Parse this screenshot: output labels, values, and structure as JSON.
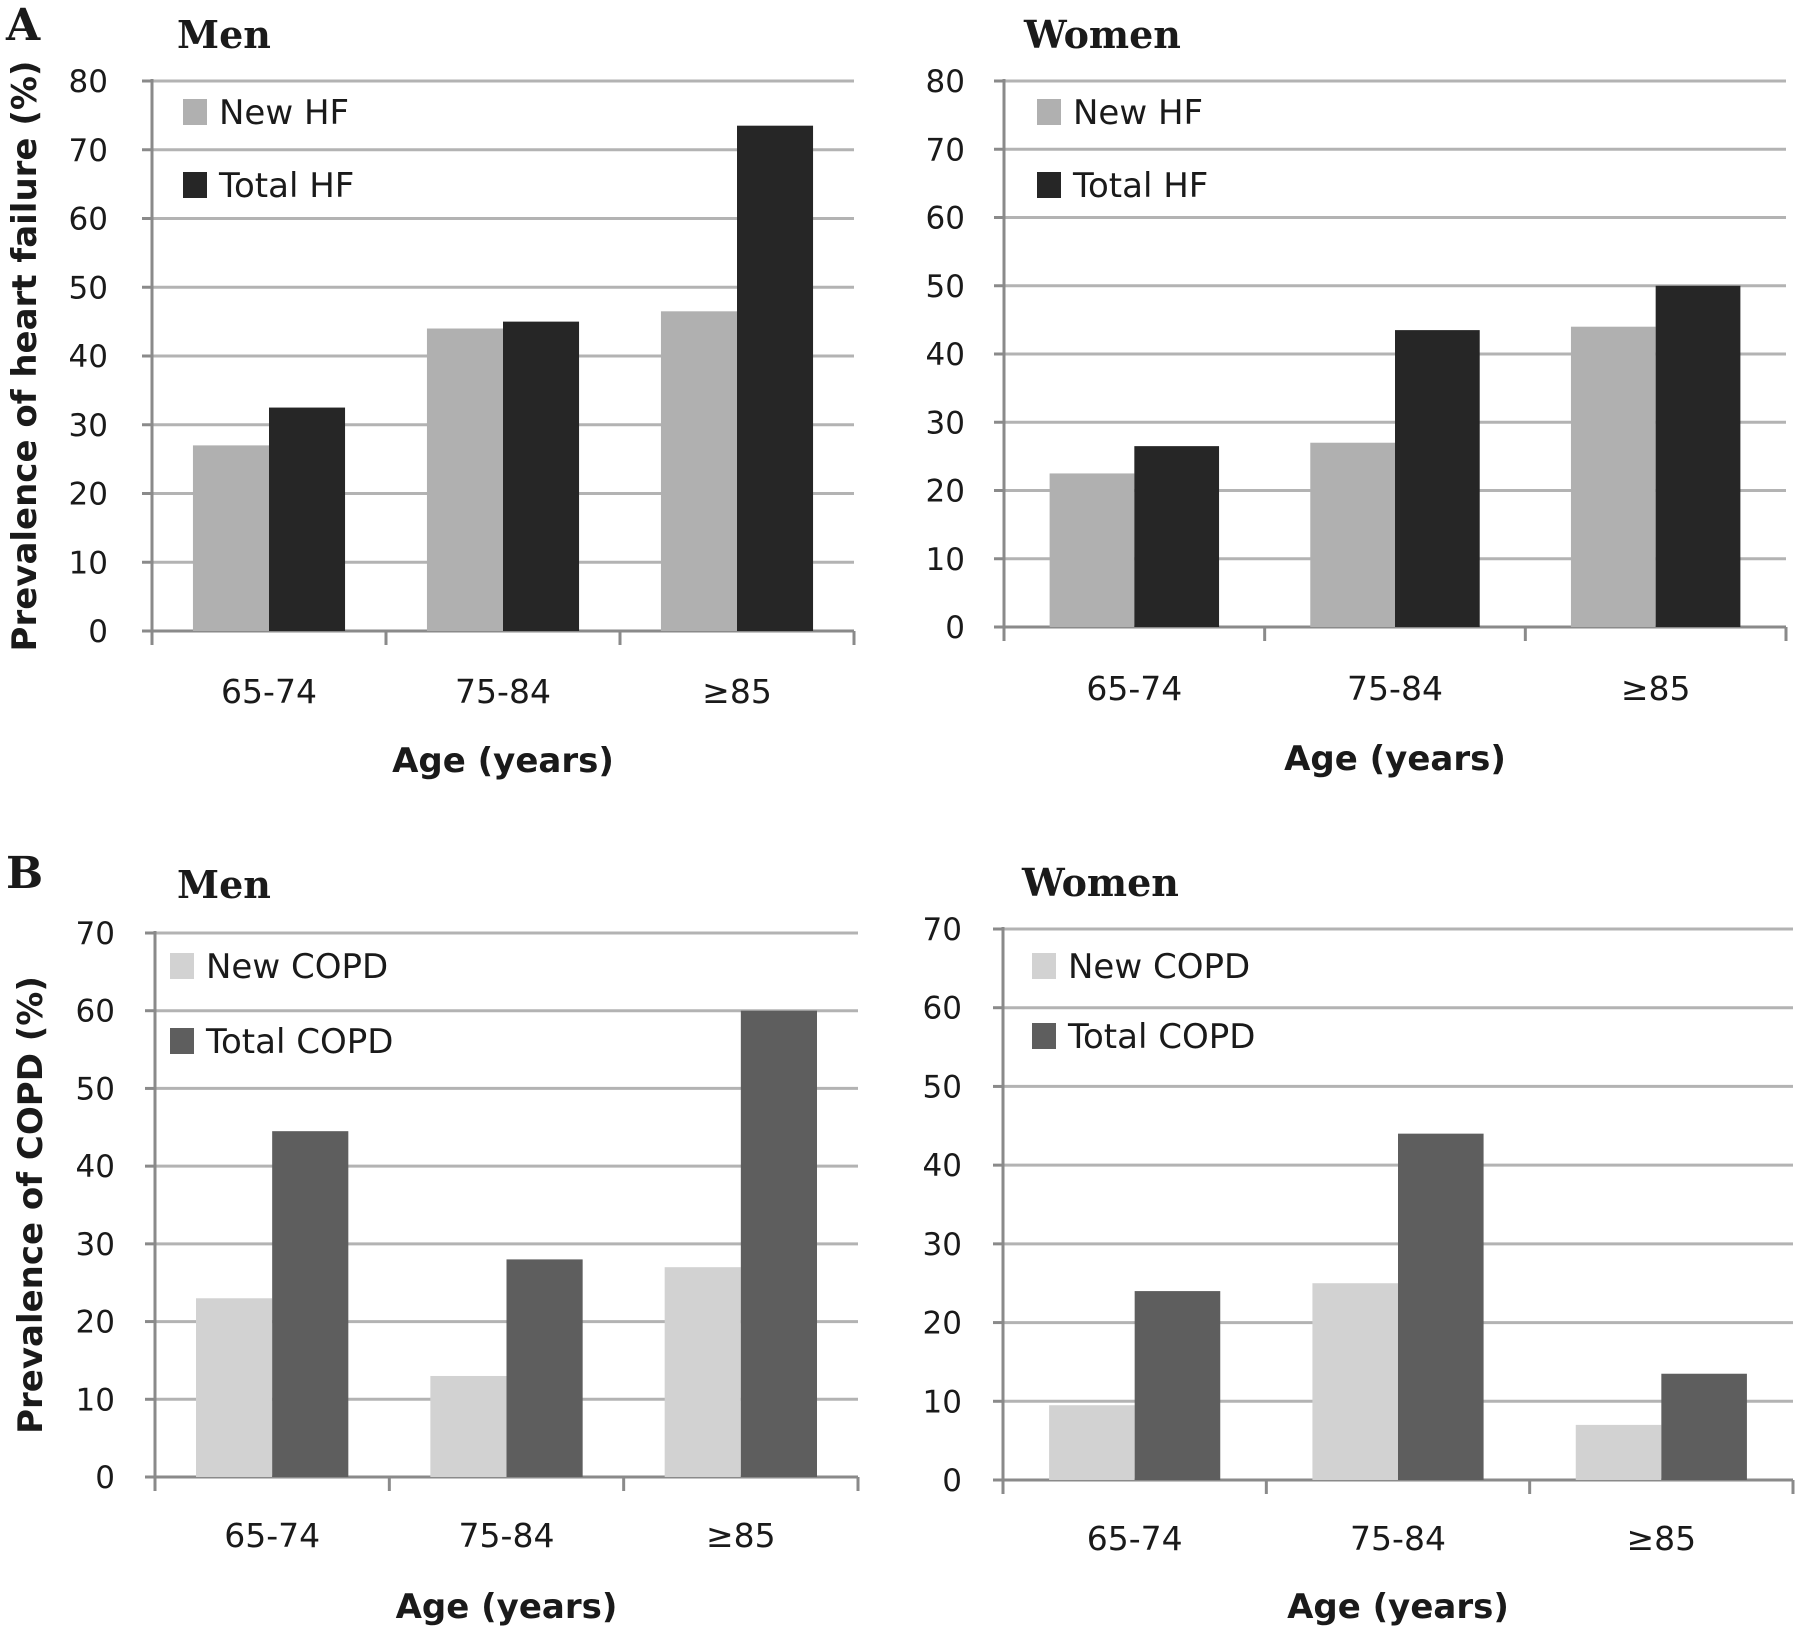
{
  "panels": [
    {
      "letter": "A"
    },
    {
      "letter": "B"
    }
  ],
  "colors": {
    "new_hf": "#b0b0b0",
    "total_hf": "#262626",
    "new_copd": "#d2d2d2",
    "total_copd": "#5e5e5e",
    "gridline": "#b3b3b3"
  },
  "chart_data": [
    {
      "type": "bar",
      "panel": "A",
      "title": "Men",
      "categories": [
        "65-74",
        "75-84",
        "≥85"
      ],
      "series": [
        {
          "name": "New HF",
          "values": [
            27,
            44,
            46.5
          ]
        },
        {
          "name": "Total HF",
          "values": [
            32.5,
            45,
            73.5
          ]
        }
      ],
      "xlabel": "Age (years)",
      "ylabel": "Prevalence of heart failure (%)",
      "ylim": [
        0,
        80
      ],
      "yticks": [
        0,
        10,
        20,
        30,
        40,
        50,
        60,
        70,
        80
      ],
      "grid": true,
      "legend_position": "top-left"
    },
    {
      "type": "bar",
      "panel": "A",
      "title": "Women",
      "categories": [
        "65-74",
        "75-84",
        "≥85"
      ],
      "series": [
        {
          "name": "New HF",
          "values": [
            22.5,
            27,
            44
          ]
        },
        {
          "name": "Total HF",
          "values": [
            26.5,
            43.5,
            50
          ]
        }
      ],
      "xlabel": "Age (years)",
      "ylabel": "",
      "ylim": [
        0,
        80
      ],
      "yticks": [
        0,
        10,
        20,
        30,
        40,
        50,
        60,
        70,
        80
      ],
      "grid": true,
      "legend_position": "top-left"
    },
    {
      "type": "bar",
      "panel": "B",
      "title": "Men",
      "categories": [
        "65-74",
        "75-84",
        "≥85"
      ],
      "series": [
        {
          "name": "New COPD",
          "values": [
            23,
            13,
            27
          ]
        },
        {
          "name": "Total COPD",
          "values": [
            44.5,
            28,
            60
          ]
        }
      ],
      "xlabel": "Age (years)",
      "ylabel": "Prevalence of COPD (%)",
      "ylim": [
        0,
        70
      ],
      "yticks": [
        0,
        10,
        20,
        30,
        40,
        50,
        60,
        70
      ],
      "grid": true,
      "legend_position": "top-left"
    },
    {
      "type": "bar",
      "panel": "B",
      "title": "Women",
      "categories": [
        "65-74",
        "75-84",
        "≥85"
      ],
      "series": [
        {
          "name": "New COPD",
          "values": [
            9.5,
            25,
            7
          ]
        },
        {
          "name": "Total COPD",
          "values": [
            24,
            44,
            13.5
          ]
        }
      ],
      "xlabel": "Age (years)",
      "ylabel": "",
      "ylim": [
        0,
        70
      ],
      "yticks": [
        0,
        10,
        20,
        30,
        40,
        50,
        60,
        70
      ],
      "grid": true,
      "legend_position": "top-left"
    }
  ]
}
